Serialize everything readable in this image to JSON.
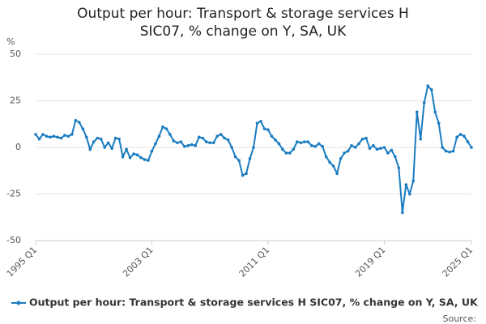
{
  "chart_data": {
    "type": "line",
    "title": "Output per hour: Transport & storage services H SIC07, % change on Y, SA, UK",
    "y_label": "%",
    "source": "Source:",
    "categories": [
      "1995 Q1",
      null,
      null,
      null,
      null,
      null,
      null,
      null,
      null,
      null,
      null,
      null,
      null,
      null,
      null,
      null,
      null,
      null,
      null,
      null,
      null,
      null,
      null,
      null,
      null,
      null,
      null,
      null,
      null,
      null,
      null,
      null,
      "2003 Q1",
      null,
      null,
      null,
      null,
      null,
      null,
      null,
      null,
      null,
      null,
      null,
      null,
      null,
      null,
      null,
      null,
      null,
      null,
      null,
      null,
      null,
      null,
      null,
      null,
      null,
      null,
      null,
      null,
      null,
      null,
      null,
      "2011 Q1",
      null,
      null,
      null,
      null,
      null,
      null,
      null,
      null,
      null,
      null,
      null,
      null,
      null,
      null,
      null,
      null,
      null,
      null,
      null,
      null,
      null,
      null,
      null,
      null,
      null,
      null,
      null,
      null,
      null,
      null,
      null,
      "2019 Q1",
      null,
      null,
      null,
      null,
      null,
      null,
      null,
      null,
      null,
      null,
      null,
      null,
      null,
      null,
      null,
      null,
      null,
      null,
      null,
      null,
      null,
      null,
      null,
      "2025 Q1"
    ],
    "series": [
      {
        "name": "Output per hour: Transport & storage services H SIC07, % change on Y, SA, UK",
        "color": "#1a7cc1",
        "values": [
          7,
          4.5,
          7,
          6,
          5.5,
          6,
          5.5,
          5,
          6.5,
          6,
          7,
          14.5,
          13.5,
          10,
          5.5,
          -1,
          3,
          5,
          4.5,
          0,
          2.5,
          -0.5,
          5,
          4.5,
          -5,
          -1,
          -5.5,
          -3.5,
          -4,
          -5.5,
          -6.5,
          -7,
          -2,
          2,
          6,
          11,
          10,
          7,
          3.5,
          2.5,
          3,
          0.5,
          1,
          1.5,
          1,
          5.5,
          5,
          3,
          2.5,
          2.5,
          6,
          7,
          5,
          4,
          0,
          -5,
          -7,
          -15,
          -14,
          -6,
          0,
          13,
          14,
          10,
          9.5,
          6,
          4,
          2,
          -1,
          -3,
          -3,
          -1,
          3,
          2.5,
          3,
          3,
          1,
          0.5,
          2,
          0.5,
          -5,
          -8,
          -10,
          -14,
          -6,
          -3,
          -2,
          1,
          0,
          2,
          4.5,
          5,
          -0.5,
          1,
          -1,
          -0.5,
          0,
          -3,
          -1.5,
          -5,
          -11,
          -35,
          -20,
          -25,
          -18,
          19,
          4.5,
          24,
          33,
          31,
          19,
          13,
          0,
          -2,
          -2.5,
          -2,
          5.5,
          7,
          6,
          3,
          0
        ]
      }
    ],
    "ylim": [
      -50,
      50
    ],
    "yticks": [
      50,
      25,
      0,
      -25,
      -50
    ],
    "grid": true
  }
}
